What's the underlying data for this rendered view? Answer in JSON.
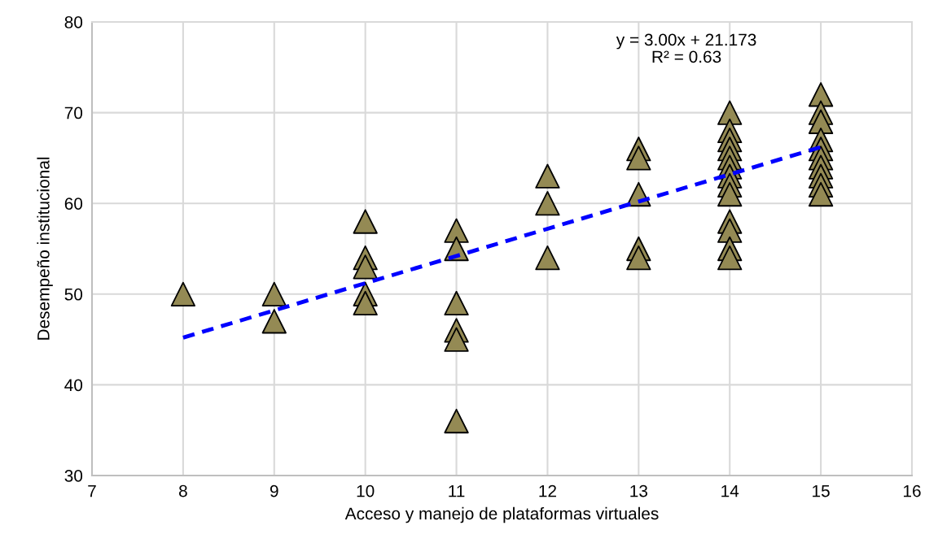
{
  "chart_data": {
    "type": "scatter",
    "xlabel": "Acceso y manejo de plataformas virtuales",
    "ylabel": "Desempeño institucional",
    "series": [
      {
        "color": "#948a54",
        "marker": "triangle",
        "x": [
          8,
          9,
          9,
          10,
          10,
          10,
          10,
          10,
          11,
          11,
          11,
          11,
          11,
          11,
          12,
          12,
          12,
          13,
          13,
          13,
          13,
          13,
          14,
          14,
          14,
          14,
          14,
          14,
          14,
          14,
          14,
          14,
          14,
          14,
          14,
          15,
          15,
          15,
          15,
          15,
          15,
          15,
          15,
          15,
          15
        ],
        "values": [
          50,
          50,
          47,
          58,
          54,
          53,
          50,
          49,
          57,
          55,
          49,
          46,
          45,
          36,
          63,
          60,
          54,
          66,
          65,
          61,
          55,
          54,
          70,
          68,
          67,
          66,
          65,
          64,
          63,
          62,
          61,
          58,
          57,
          55,
          54,
          72,
          70,
          69,
          67,
          66,
          65,
          64,
          63,
          62,
          61
        ]
      },
      {
        "type": "line",
        "color": "#0000ff",
        "line_style": "dashed",
        "marker": "none",
        "x": [
          8,
          15
        ],
        "values": [
          45.2,
          66.2
        ]
      }
    ],
    "annotations": [
      "y = 3.00x + 21.173\nR² = 0.63"
    ],
    "xlim": [
      7,
      16
    ],
    "xticks": [
      7,
      8,
      9,
      10,
      11,
      12,
      13,
      14,
      15,
      16
    ],
    "ylim": [
      30,
      80
    ],
    "yticks": [
      30,
      40,
      50,
      60,
      70,
      80
    ],
    "grid": true
  }
}
